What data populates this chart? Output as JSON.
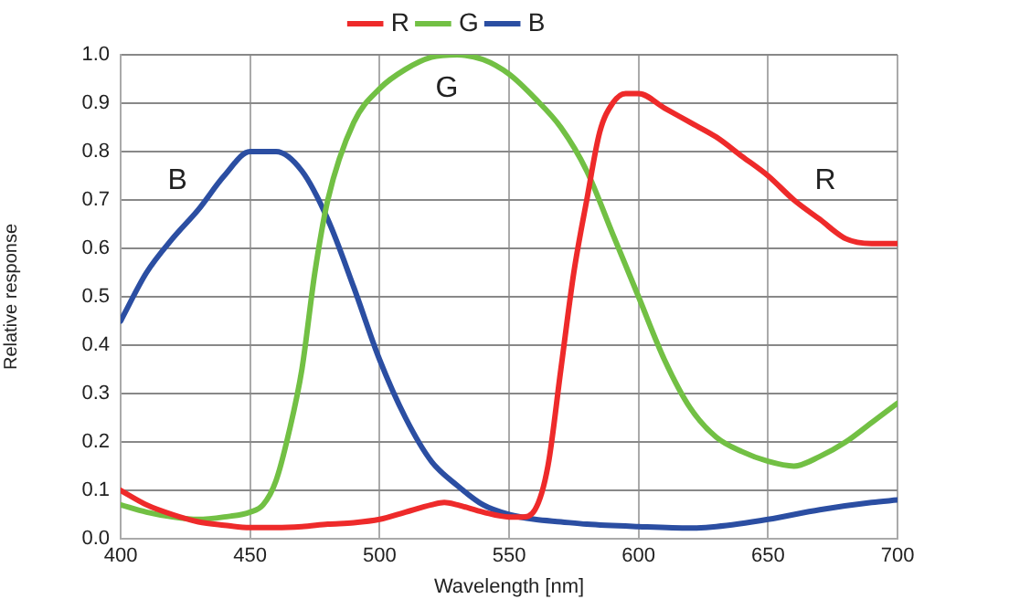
{
  "chart_data": {
    "type": "line",
    "xlabel": "Wavelength [nm]",
    "ylabel": "Relative response",
    "xlim": [
      400,
      700
    ],
    "xticks": [
      400,
      450,
      500,
      550,
      600,
      650,
      700
    ],
    "ylim": [
      0,
      1
    ],
    "yticks": [
      {
        "value": 0,
        "label": "0.0"
      },
      0.1,
      0.2,
      0.3,
      0.4,
      0.5,
      0.6,
      0.7,
      0.8,
      0.9,
      {
        "value": 1,
        "label": "1.0"
      }
    ],
    "grid": true,
    "legend": "top",
    "marker": "none",
    "line_style": "solid",
    "series": [
      {
        "name": "R",
        "color": "#ee2a2a",
        "x": [
          400,
          410,
          420,
          430,
          440,
          450,
          460,
          470,
          480,
          490,
          500,
          510,
          520,
          525,
          530,
          540,
          550,
          555,
          560,
          565,
          570,
          575,
          580,
          585,
          590,
          595,
          600,
          610,
          620,
          630,
          640,
          650,
          660,
          670,
          680,
          690,
          700
        ],
        "values": [
          0.1,
          0.07,
          0.05,
          0.035,
          0.028,
          0.023,
          0.023,
          0.025,
          0.03,
          0.033,
          0.04,
          0.055,
          0.07,
          0.075,
          0.07,
          0.055,
          0.045,
          0.045,
          0.06,
          0.15,
          0.35,
          0.55,
          0.7,
          0.84,
          0.9,
          0.92,
          0.92,
          0.89,
          0.86,
          0.83,
          0.79,
          0.75,
          0.7,
          0.66,
          0.62,
          0.61,
          0.61
        ]
      },
      {
        "name": "G",
        "color": "#72c044",
        "x": [
          400,
          410,
          420,
          430,
          440,
          450,
          455,
          460,
          465,
          470,
          475,
          480,
          490,
          500,
          510,
          520,
          530,
          540,
          550,
          560,
          570,
          580,
          590,
          600,
          610,
          620,
          630,
          640,
          650,
          660,
          670,
          680,
          690,
          700
        ],
        "values": [
          0.07,
          0.055,
          0.045,
          0.04,
          0.045,
          0.055,
          0.07,
          0.12,
          0.22,
          0.35,
          0.55,
          0.7,
          0.86,
          0.93,
          0.97,
          0.995,
          1.0,
          0.99,
          0.96,
          0.91,
          0.85,
          0.76,
          0.63,
          0.5,
          0.37,
          0.27,
          0.21,
          0.18,
          0.16,
          0.15,
          0.17,
          0.2,
          0.24,
          0.28
        ]
      },
      {
        "name": "B",
        "color": "#2b4ea2",
        "x": [
          400,
          410,
          420,
          430,
          440,
          450,
          460,
          470,
          480,
          490,
          500,
          510,
          520,
          530,
          540,
          550,
          560,
          570,
          580,
          600,
          620,
          630,
          650,
          670,
          690,
          700
        ],
        "values": [
          0.45,
          0.55,
          0.62,
          0.68,
          0.75,
          0.8,
          0.8,
          0.76,
          0.66,
          0.52,
          0.37,
          0.25,
          0.16,
          0.11,
          0.07,
          0.05,
          0.04,
          0.035,
          0.03,
          0.025,
          0.022,
          0.025,
          0.04,
          0.06,
          0.075,
          0.08
        ]
      }
    ],
    "annotations": [
      "B",
      "G",
      "R"
    ]
  }
}
